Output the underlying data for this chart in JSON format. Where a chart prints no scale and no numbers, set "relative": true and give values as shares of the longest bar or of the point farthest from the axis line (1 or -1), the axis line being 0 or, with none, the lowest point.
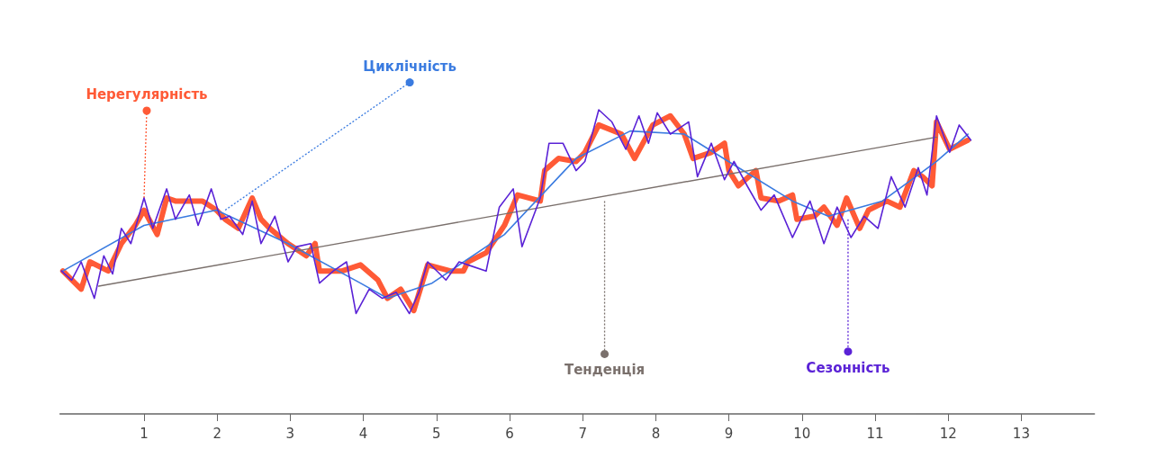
{
  "chart_data": {
    "type": "line",
    "relative": true,
    "marker": "none",
    "grid": false,
    "xlim": [
      -0.15,
      14
    ],
    "xticks": [
      1,
      2,
      3,
      4,
      5,
      6,
      7,
      8,
      9,
      10,
      11,
      12,
      13
    ],
    "annotations": [
      {
        "text": "Нерегулярність",
        "x": 1.0,
        "y": 0.71
      },
      {
        "text": "Циклічність",
        "x": 2.11,
        "y": 0.67
      },
      {
        "text": "Тенденція",
        "x": 7.3,
        "y": 0.7
      },
      {
        "text": "Сезонність",
        "x": 10.63,
        "y": 0.64
      }
    ],
    "series": [
      {
        "color": "#ff5a36",
        "x": [
          -0.11,
          0.14,
          0.26,
          0.51,
          0.69,
          0.88,
          1.0,
          1.18,
          1.31,
          1.43,
          1.68,
          1.8,
          1.99,
          2.11,
          2.29,
          2.48,
          2.6,
          2.72,
          2.97,
          3.22,
          3.34,
          3.4,
          3.71,
          3.96,
          4.2,
          4.33,
          4.51,
          4.69,
          4.88,
          5.19,
          5.37,
          5.43,
          5.68,
          5.93,
          6.11,
          6.42,
          6.48,
          6.67,
          6.91,
          7.03,
          7.22,
          7.53,
          7.71,
          7.96,
          8.2,
          8.39,
          8.51,
          8.76,
          8.94,
          9.0,
          9.13,
          9.37,
          9.44,
          9.68,
          9.87,
          9.93,
          10.17,
          10.3,
          10.48,
          10.61,
          10.79,
          10.91,
          11.16,
          11.34,
          11.53,
          11.65,
          11.78,
          11.84,
          12.02,
          12.27
        ],
        "values": [
          0.47,
          0.41,
          0.5,
          0.47,
          0.56,
          0.62,
          0.67,
          0.59,
          0.71,
          0.7,
          0.7,
          0.7,
          0.67,
          0.64,
          0.61,
          0.71,
          0.64,
          0.61,
          0.56,
          0.52,
          0.56,
          0.47,
          0.47,
          0.49,
          0.44,
          0.38,
          0.41,
          0.34,
          0.49,
          0.47,
          0.47,
          0.5,
          0.53,
          0.62,
          0.72,
          0.7,
          0.8,
          0.84,
          0.83,
          0.86,
          0.95,
          0.92,
          0.84,
          0.95,
          0.98,
          0.92,
          0.84,
          0.86,
          0.89,
          0.8,
          0.75,
          0.8,
          0.71,
          0.7,
          0.72,
          0.64,
          0.65,
          0.68,
          0.62,
          0.71,
          0.61,
          0.67,
          0.7,
          0.68,
          0.8,
          0.78,
          0.75,
          0.96,
          0.87,
          0.9
        ]
      },
      {
        "color": "#3a7be0",
        "x": [
          -0.11,
          1.0,
          1.99,
          2.97,
          3.96,
          4.33,
          4.94,
          5.93,
          6.91,
          7.65,
          8.39,
          9.13,
          9.87,
          10.36,
          11.1,
          11.84,
          12.27
        ],
        "values": [
          0.47,
          0.62,
          0.67,
          0.56,
          0.43,
          0.38,
          0.43,
          0.59,
          0.84,
          0.93,
          0.92,
          0.81,
          0.7,
          0.65,
          0.7,
          0.83,
          0.92
        ]
      },
      {
        "color": "#7a706c",
        "x": [
          0.38,
          11.84
        ],
        "values": [
          0.42,
          0.91
        ]
      },
      {
        "color": "#5a22d6",
        "x": [
          -0.13,
          0.01,
          0.14,
          0.32,
          0.45,
          0.57,
          0.69,
          0.82,
          1.0,
          1.12,
          1.31,
          1.43,
          1.62,
          1.74,
          1.92,
          2.05,
          2.17,
          2.35,
          2.48,
          2.6,
          2.79,
          2.97,
          3.09,
          3.28,
          3.4,
          3.59,
          3.77,
          3.9,
          4.08,
          4.26,
          4.45,
          4.63,
          4.76,
          4.88,
          5.13,
          5.31,
          5.43,
          5.68,
          5.86,
          6.05,
          6.17,
          6.42,
          6.54,
          6.73,
          6.91,
          7.03,
          7.22,
          7.4,
          7.59,
          7.77,
          7.9,
          8.02,
          8.2,
          8.45,
          8.57,
          8.76,
          8.94,
          9.07,
          9.25,
          9.44,
          9.62,
          9.87,
          10.11,
          10.3,
          10.48,
          10.67,
          10.85,
          11.04,
          11.22,
          11.41,
          11.59,
          11.71,
          11.84,
          12.02,
          12.15,
          12.31
        ],
        "values": [
          0.47,
          0.44,
          0.5,
          0.38,
          0.52,
          0.46,
          0.61,
          0.56,
          0.71,
          0.61,
          0.74,
          0.64,
          0.72,
          0.62,
          0.74,
          0.64,
          0.65,
          0.59,
          0.7,
          0.56,
          0.65,
          0.5,
          0.55,
          0.56,
          0.43,
          0.47,
          0.5,
          0.33,
          0.41,
          0.38,
          0.4,
          0.33,
          0.4,
          0.5,
          0.44,
          0.5,
          0.49,
          0.47,
          0.68,
          0.74,
          0.55,
          0.71,
          0.89,
          0.89,
          0.8,
          0.83,
          1.0,
          0.96,
          0.87,
          0.98,
          0.89,
          0.99,
          0.92,
          0.96,
          0.78,
          0.89,
          0.77,
          0.83,
          0.75,
          0.67,
          0.72,
          0.58,
          0.7,
          0.56,
          0.68,
          0.58,
          0.65,
          0.61,
          0.78,
          0.68,
          0.81,
          0.72,
          0.98,
          0.86,
          0.95,
          0.9
        ]
      }
    ]
  }
}
